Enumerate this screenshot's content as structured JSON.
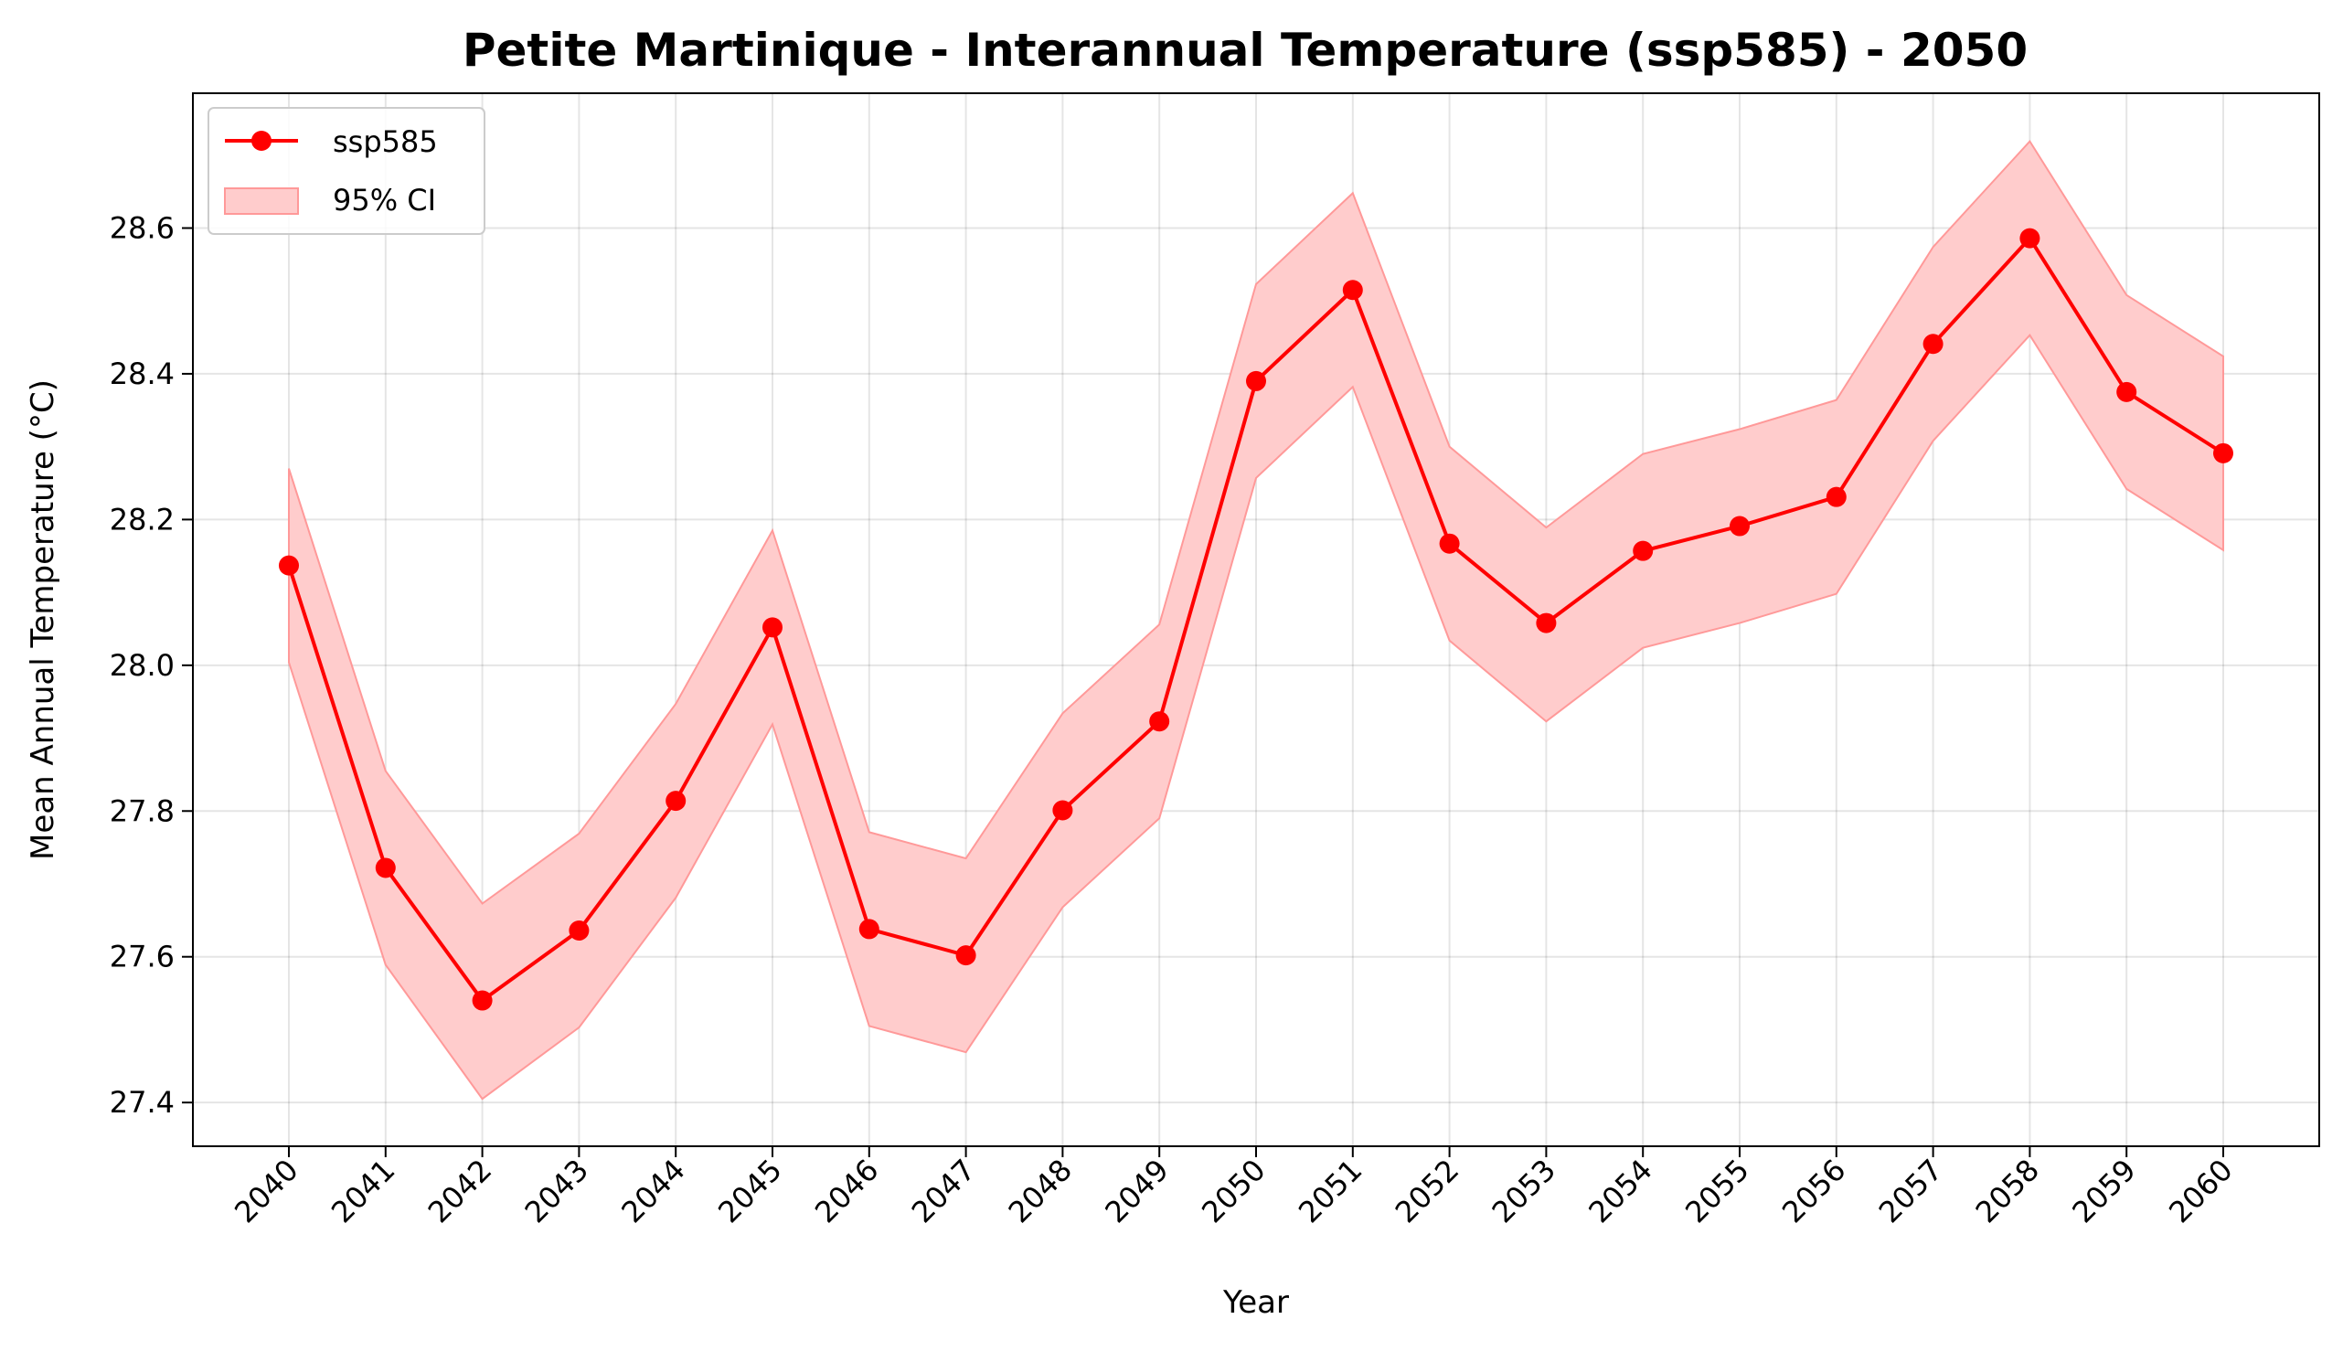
{
  "chart_data": {
    "type": "line",
    "title": "Petite Martinique - Interannual Temperature (ssp585) - 2050",
    "xlabel": "Year",
    "ylabel": "Mean Annual Temperature (°C)",
    "x": [
      "2040",
      "2041",
      "2042",
      "2043",
      "2044",
      "2045",
      "2046",
      "2047",
      "2048",
      "2049",
      "2050",
      "2051",
      "2052",
      "2053",
      "2054",
      "2055",
      "2056",
      "2057",
      "2058",
      "2059",
      "2060"
    ],
    "series": [
      {
        "name": "ssp585",
        "color": "#ff0000",
        "values": [
          28.137,
          27.722,
          27.54,
          27.636,
          27.814,
          28.052,
          27.638,
          27.602,
          27.801,
          27.923,
          28.39,
          28.515,
          28.167,
          28.058,
          28.157,
          28.191,
          28.231,
          28.441,
          28.586,
          28.375,
          28.291
        ],
        "ci_lower": [
          28.004,
          27.589,
          27.405,
          27.503,
          27.681,
          27.919,
          27.505,
          27.469,
          27.668,
          27.79,
          28.257,
          28.382,
          28.034,
          27.923,
          28.024,
          28.058,
          28.098,
          28.308,
          28.453,
          28.242,
          28.158
        ],
        "ci_upper": [
          28.27,
          27.855,
          27.673,
          27.769,
          27.947,
          28.185,
          27.771,
          27.735,
          27.934,
          28.056,
          28.523,
          28.648,
          28.3,
          28.189,
          28.29,
          28.324,
          28.364,
          28.574,
          28.719,
          28.508,
          28.424
        ]
      }
    ],
    "ci_label": "95% CI",
    "ci_color": "#ffcccc",
    "yticks": [
      "27.4",
      "27.6",
      "27.8",
      "28.0",
      "28.2",
      "28.4",
      "28.6"
    ],
    "ylim": [
      27.34,
      28.785
    ],
    "grid": true,
    "legend_position": "upper-left"
  }
}
